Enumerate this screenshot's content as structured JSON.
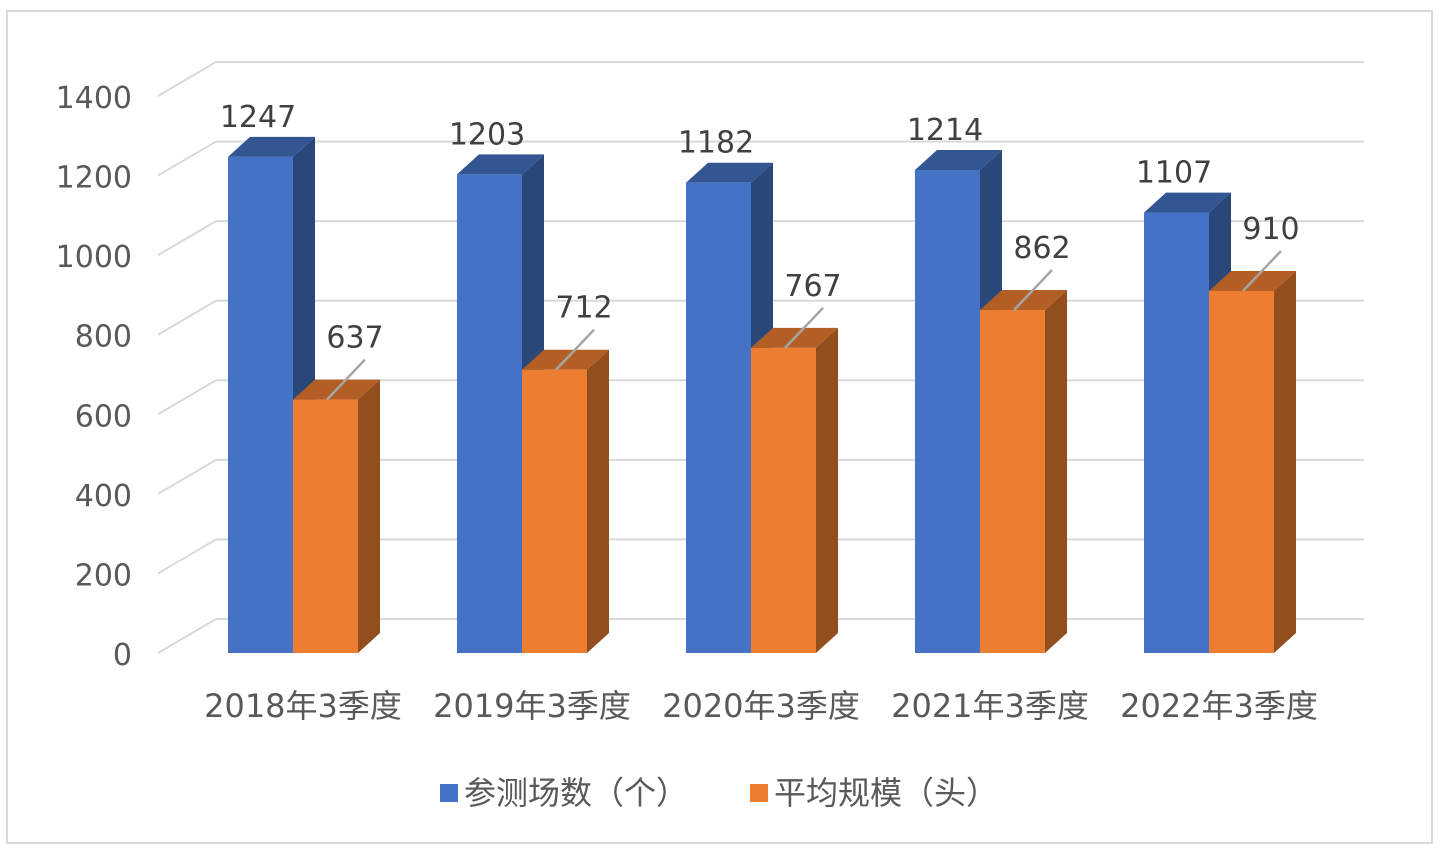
{
  "chart_data": {
    "type": "bar",
    "categories": [
      "2018年3季度",
      "2019年3季度",
      "2020年3季度",
      "2021年3季度",
      "2022年3季度"
    ],
    "series": [
      {
        "name": "参测场数（个）",
        "values": [
          1247,
          1203,
          1182,
          1214,
          1107
        ],
        "color": "#4472c4"
      },
      {
        "name": "平均规模（头）",
        "values": [
          637,
          712,
          767,
          862,
          910
        ],
        "color": "#ed7d31"
      }
    ],
    "ylim": [
      0,
      1400
    ],
    "yticks": [
      "0",
      "200",
      "400",
      "600",
      "800",
      "1000",
      "1200",
      "1400"
    ],
    "grid": true,
    "style": "3d-clustered-column",
    "legend": "bottom"
  }
}
